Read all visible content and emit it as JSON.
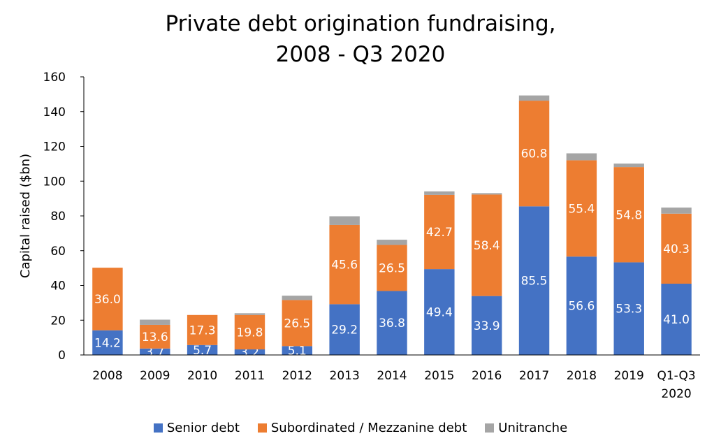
{
  "chart_data": {
    "type": "bar",
    "stacked": true,
    "title_lines": [
      "Private debt origination fundraising,",
      "2008 - Q3 2020"
    ],
    "ylabel": "Capital raised ($bn)",
    "xlabel": "",
    "ylim": [
      0,
      160
    ],
    "yticks": [
      0,
      20,
      40,
      60,
      80,
      100,
      120,
      140,
      160
    ],
    "categories": [
      "2008",
      "2009",
      "2010",
      "2011",
      "2012",
      "2013",
      "2014",
      "2015",
      "2016",
      "2017",
      "2018",
      "2019",
      "Q1-Q3 2020"
    ],
    "category_label_lines": [
      [
        "2008"
      ],
      [
        "2009"
      ],
      [
        "2010"
      ],
      [
        "2011"
      ],
      [
        "2012"
      ],
      [
        "2013"
      ],
      [
        "2014"
      ],
      [
        "2015"
      ],
      [
        "2016"
      ],
      [
        "2017"
      ],
      [
        "2018"
      ],
      [
        "2019"
      ],
      [
        "Q1-Q3",
        "2020"
      ]
    ],
    "series": [
      {
        "name": "Senior debt",
        "color": "#4472C4",
        "values": [
          14.2,
          3.7,
          5.7,
          3.2,
          5.1,
          29.2,
          36.8,
          49.4,
          33.9,
          85.5,
          56.6,
          53.3,
          41.0
        ],
        "labels": [
          "14.2",
          "3.7",
          "5.7",
          "3.2",
          "5.1",
          "29.2",
          "36.8",
          "49.4",
          "33.9",
          "85.5",
          "56.6",
          "53.3",
          "41.0"
        ]
      },
      {
        "name": "Subordinated / Mezzanine debt",
        "color": "#ED7D31",
        "values": [
          36.0,
          13.6,
          17.3,
          19.8,
          26.5,
          45.6,
          26.5,
          42.7,
          58.4,
          60.8,
          55.4,
          54.8,
          40.3
        ],
        "labels": [
          "36.0",
          "13.6",
          "17.3",
          "19.8",
          "26.5",
          "45.6",
          "26.5",
          "42.7",
          "58.4",
          "60.8",
          "55.4",
          "54.8",
          "40.3"
        ]
      },
      {
        "name": "Unitranche",
        "color": "#A5A5A5",
        "values": [
          0.0,
          3.0,
          0.0,
          1.0,
          2.5,
          5.0,
          3.0,
          2.0,
          0.8,
          3.0,
          4.0,
          2.0,
          3.5
        ],
        "labels": []
      }
    ],
    "grid": false,
    "legend_position": "bottom"
  }
}
